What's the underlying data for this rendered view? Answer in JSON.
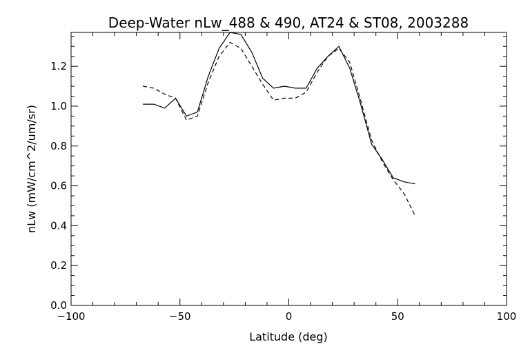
{
  "chart_data": {
    "type": "line",
    "title": "Deep-Water nLw_488 & 490, AT24 & ST08, 2003288",
    "xlabel": "Latitude (deg)",
    "ylabel": "nLw (mW/cm^2/um/sr)",
    "xlim": [
      -100,
      100
    ],
    "ylim": [
      0,
      1.37
    ],
    "xticks": [
      -100,
      -50,
      0,
      50,
      100
    ],
    "xtick_labels": [
      "−100",
      "−50",
      "0",
      "50",
      "100"
    ],
    "yticks": [
      0.0,
      0.2,
      0.4,
      0.6,
      0.8,
      1.0,
      1.2
    ],
    "ytick_labels": [
      "0.0",
      "0.2",
      "0.4",
      "0.6",
      "0.8",
      "1.0",
      "1.2"
    ],
    "grid": false,
    "legend": "none",
    "series": [
      {
        "style": "solid",
        "color": "#000000",
        "points": [
          [
            -67,
            1.01
          ],
          [
            -62,
            1.01
          ],
          [
            -57,
            0.99
          ],
          [
            -52,
            1.04
          ],
          [
            -47,
            0.95
          ],
          [
            -42,
            0.97
          ],
          [
            -37,
            1.15
          ],
          [
            -32,
            1.29
          ],
          [
            -27,
            1.37
          ],
          [
            -22,
            1.36
          ],
          [
            -17,
            1.27
          ],
          [
            -12,
            1.14
          ],
          [
            -7,
            1.09
          ],
          [
            -2,
            1.1
          ],
          [
            3,
            1.09
          ],
          [
            8,
            1.09
          ],
          [
            13,
            1.19
          ],
          [
            18,
            1.25
          ],
          [
            23,
            1.3
          ],
          [
            28,
            1.19
          ],
          [
            33,
            1.01
          ],
          [
            38,
            0.81
          ],
          [
            43,
            0.73
          ],
          [
            48,
            0.64
          ],
          [
            53,
            0.62
          ],
          [
            58,
            0.61
          ]
        ]
      },
      {
        "style": "dashed",
        "color": "#000000",
        "points": [
          [
            -67,
            1.1
          ],
          [
            -62,
            1.09
          ],
          [
            -57,
            1.06
          ],
          [
            -52,
            1.04
          ],
          [
            -47,
            0.93
          ],
          [
            -42,
            0.95
          ],
          [
            -37,
            1.12
          ],
          [
            -32,
            1.25
          ],
          [
            -27,
            1.32
          ],
          [
            -22,
            1.29
          ],
          [
            -17,
            1.2
          ],
          [
            -12,
            1.11
          ],
          [
            -7,
            1.03
          ],
          [
            -2,
            1.04
          ],
          [
            3,
            1.04
          ],
          [
            8,
            1.07
          ],
          [
            13,
            1.17
          ],
          [
            18,
            1.25
          ],
          [
            23,
            1.29
          ],
          [
            28,
            1.22
          ],
          [
            33,
            1.03
          ],
          [
            38,
            0.83
          ],
          [
            43,
            0.72
          ],
          [
            48,
            0.63
          ],
          [
            53,
            0.56
          ],
          [
            58,
            0.45
          ]
        ]
      }
    ]
  }
}
